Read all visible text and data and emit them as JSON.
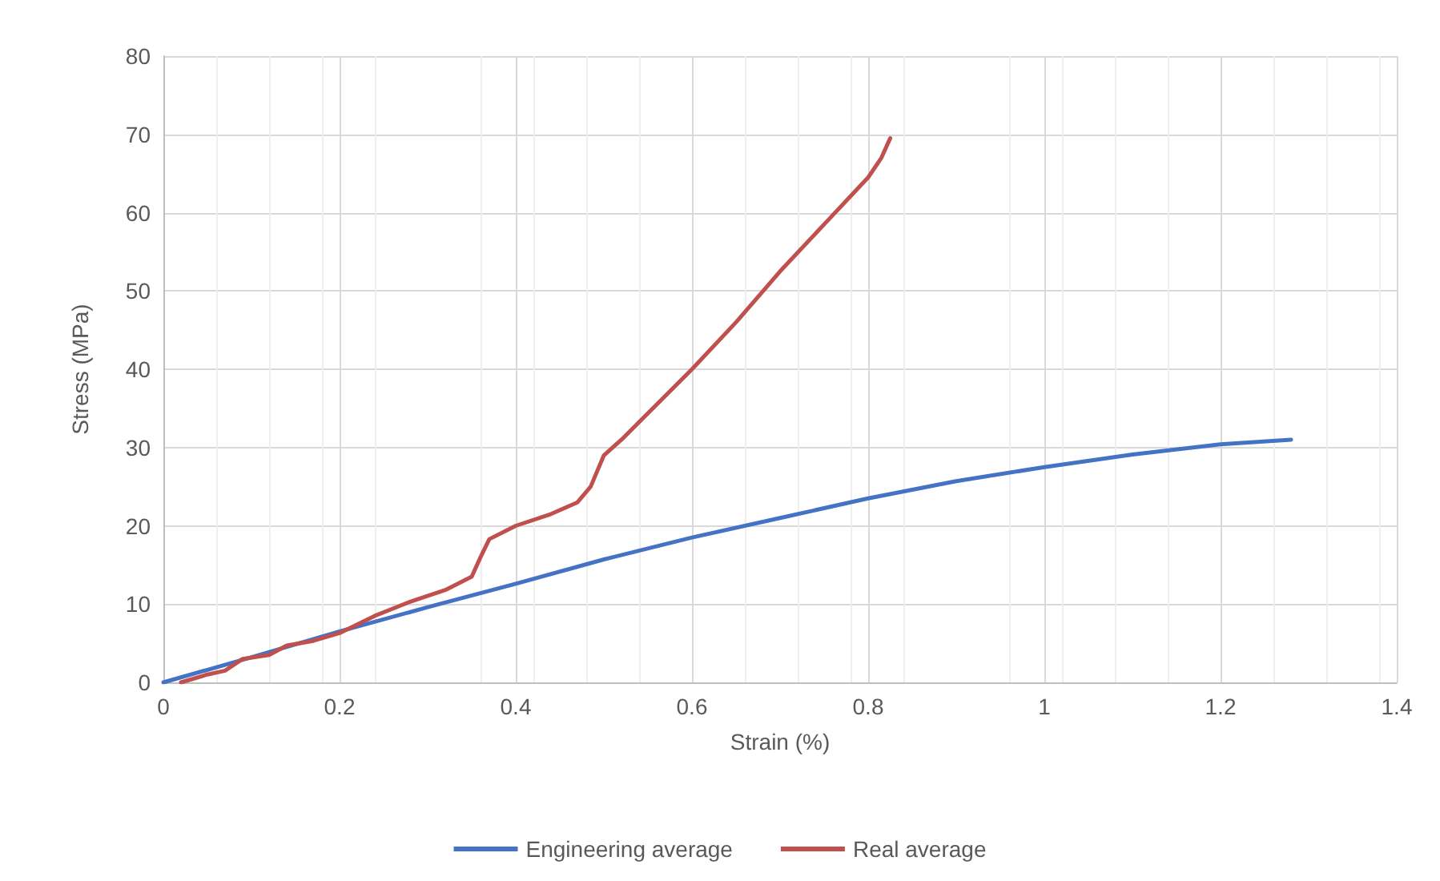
{
  "chart_data": {
    "type": "line",
    "xlabel": "Strain (%)",
    "ylabel": "Stress (MPa)",
    "xlim": [
      0,
      1.4
    ],
    "xticks": [
      0,
      0.2,
      0.4,
      0.6,
      0.8,
      1,
      1.2,
      1.4
    ],
    "ylim": [
      0,
      80
    ],
    "yticks": [
      0,
      10,
      20,
      30,
      40,
      50,
      60,
      70,
      80
    ],
    "grid": true,
    "legend": "bottom",
    "marker": "none",
    "line_style": "solid",
    "series": [
      {
        "name": "Engineering average",
        "color": "#4472c4",
        "x": [
          0,
          0.1,
          0.2,
          0.3,
          0.4,
          0.5,
          0.6,
          0.7,
          0.8,
          0.9,
          1.0,
          1.1,
          1.2,
          1.28
        ],
        "values": [
          0,
          3.2,
          6.5,
          9.6,
          12.6,
          15.7,
          18.5,
          21,
          23.5,
          25.7,
          27.5,
          29.1,
          30.4,
          31
        ]
      },
      {
        "name": "Real average",
        "color": "#c0504d",
        "x": [
          0.02,
          0.05,
          0.07,
          0.09,
          0.12,
          0.14,
          0.17,
          0.2,
          0.24,
          0.28,
          0.32,
          0.35,
          0.36,
          0.37,
          0.4,
          0.44,
          0.47,
          0.485,
          0.5,
          0.52,
          0.56,
          0.6,
          0.65,
          0.7,
          0.75,
          0.8,
          0.815,
          0.825
        ],
        "values": [
          0,
          1,
          1.5,
          3,
          3.5,
          4.7,
          5.3,
          6.3,
          8.5,
          10.3,
          11.8,
          13.5,
          16,
          18.3,
          20,
          21.5,
          23,
          25,
          29,
          31,
          35.5,
          40,
          46,
          52.5,
          58.5,
          64.5,
          67,
          69.5
        ]
      }
    ]
  }
}
